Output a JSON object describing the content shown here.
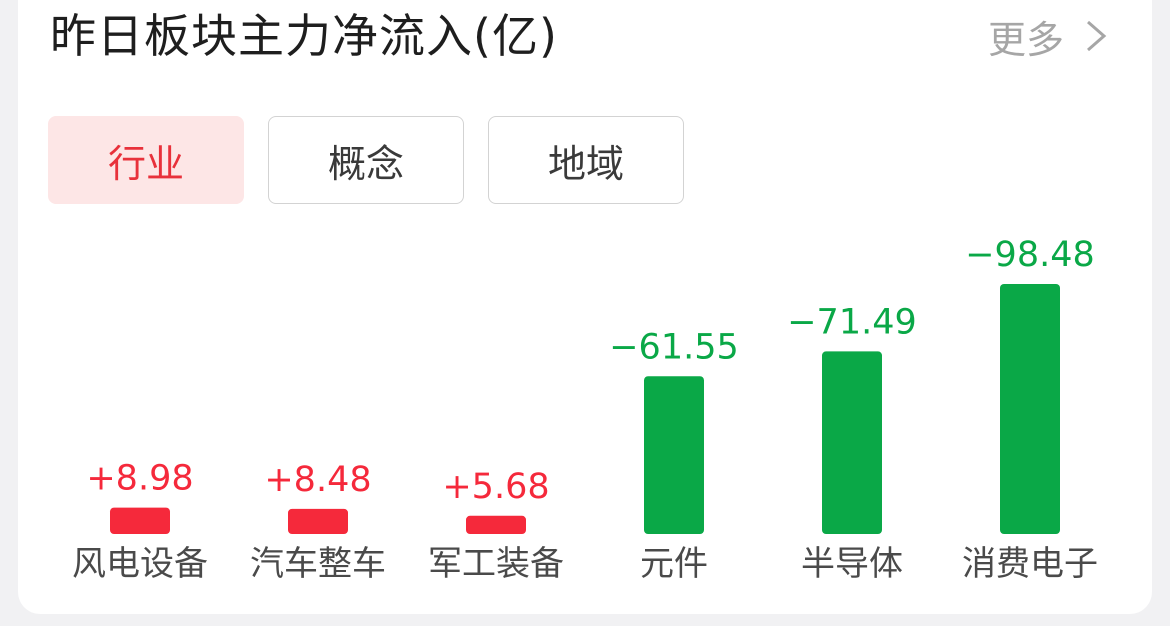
{
  "header": {
    "title": "昨日板块主力净流入(亿)",
    "more_label": "更多"
  },
  "tabs": [
    {
      "label": "行业",
      "active": true
    },
    {
      "label": "概念",
      "active": false
    },
    {
      "label": "地域",
      "active": false
    }
  ],
  "colors": {
    "positive": "#f5293b",
    "negative": "#0aa847",
    "tab_active_bg": "#fde6e6",
    "tab_active_text": "#e8313b"
  },
  "chart_data": {
    "type": "bar",
    "categories": [
      "风电设备",
      "汽车整车",
      "军工装备",
      "元件",
      "半导体",
      "消费电子"
    ],
    "values": [
      8.98,
      8.48,
      5.68,
      -61.55,
      -71.49,
      -98.48
    ],
    "value_labels": [
      "+8.98",
      "+8.48",
      "+5.68",
      "−61.55",
      "−71.49",
      "−98.48"
    ],
    "title": "昨日板块主力净流入(亿)",
    "xlabel": "",
    "ylabel": "",
    "grid": false,
    "note": "bar height encodes magnitude; red = net inflow, green = net outflow"
  }
}
